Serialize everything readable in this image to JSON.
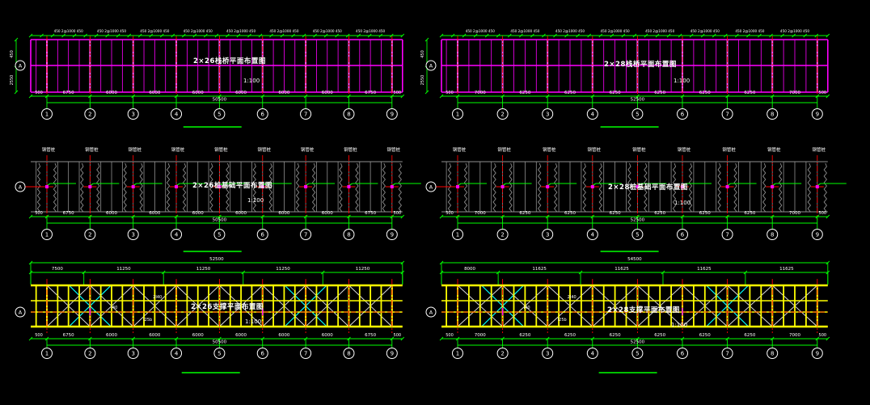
{
  "app": {
    "name": "CAD drawing view",
    "background": "#000000"
  },
  "colors": {
    "dim_green": "#00ff00",
    "deck_magenta": "#ff00ff",
    "axis_red": "#ff0000",
    "pile_gray": "#909090",
    "truss_yellow": "#ffff00",
    "brace_cyan": "#00ffff",
    "text_white": "#ffffff"
  },
  "axis_numbers": [
    "1",
    "2",
    "3",
    "4",
    "5",
    "6",
    "7",
    "8",
    "9"
  ],
  "axis_letter": "A",
  "groups": [
    {
      "label": "2x26",
      "titles": {
        "plan": "2×26栈桥平面布置图",
        "pile": "2×26桩基础平面布置图",
        "brace": "2×26支撑平面布置图"
      },
      "scale_note": "1:100",
      "top_strip_dim": "450 2@1000 450",
      "left_dims": [
        "450",
        "2550"
      ],
      "end_dim": "500",
      "bay_dims": [
        "6750",
        "6000",
        "6000",
        "6000",
        "6000",
        "6000",
        "6000",
        "6750"
      ],
      "total_dim": "50500",
      "truss_top_segments": [
        "7500",
        "11250",
        "11250",
        "11250",
        "11250"
      ],
      "truss_top_total": "52500",
      "pile_label": "钢管桩",
      "member_labels": [
        "I40",
        "2I40",
        "I25b"
      ]
    },
    {
      "label": "2x28",
      "titles": {
        "plan": "2×28栈桥平面布置图",
        "pile": "2×28桩基础平面布置图",
        "brace": "2×28支撑平面布置图"
      },
      "scale_note": "1:100",
      "top_strip_dim": "450 2@1000 450",
      "left_dims": [
        "450",
        "2550"
      ],
      "end_dim": "500",
      "bay_dims": [
        "7000",
        "6250",
        "6250",
        "6250",
        "6250",
        "6250",
        "6250",
        "7000"
      ],
      "total_dim": "52500",
      "truss_top_segments": [
        "8000",
        "11625",
        "11625",
        "11625",
        "11625"
      ],
      "truss_top_total": "54500",
      "pile_label": "钢管桩",
      "member_labels": [
        "I40",
        "2I40",
        "I25b"
      ]
    }
  ]
}
